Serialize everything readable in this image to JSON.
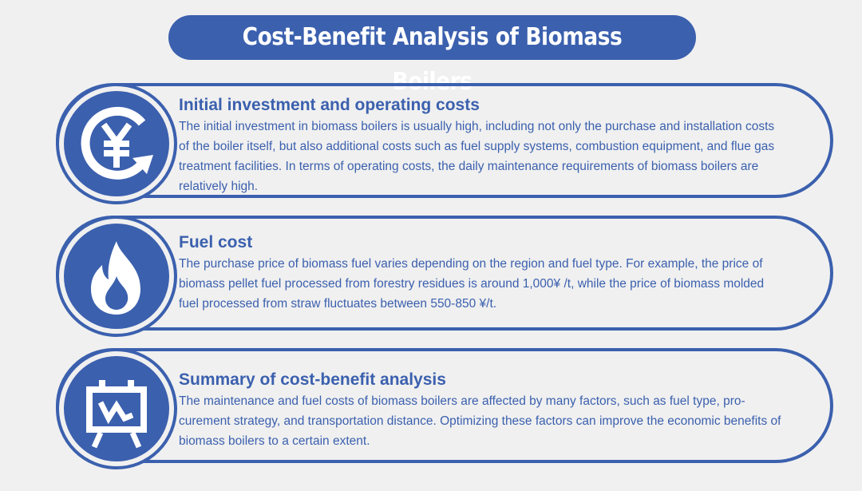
{
  "title": "Cost-Benefit Analysis of Biomass Boilers",
  "colors": {
    "accent": "#3b60ae",
    "background": "#f0f0f0"
  },
  "sections": [
    {
      "icon": "yen-cycle-icon",
      "heading": "Initial investment and operating costs",
      "body": "The initial investment in biomass boilers is usually high, including not only the purchase and installation costs of the boiler itself, but also additional costs such as fuel supply systems, combustion equipment, and flue gas treatment facilities. In terms of operating costs, the daily maintenance requirements of biomass boilers are relatively high."
    },
    {
      "icon": "flame-icon",
      "heading": "Fuel cost",
      "body": "The purchase price of biomass fuel varies depending on the region and fuel type. For example, the price of biomass pellet fuel processed from forestry residues is around 1,000¥ /t, while the price of biomass molded fuel processed from straw fluctuates between 550-850 ¥/t."
    },
    {
      "icon": "chart-easel-icon",
      "heading": "Summary of cost-benefit analysis",
      "body": "The maintenance and fuel costs of biomass boilers are affected by many factors, such as fuel type, pro-curement strategy, and transportation distance. Optimizing these factors can improve the economic benefits of biomass boilers to a certain extent."
    }
  ]
}
